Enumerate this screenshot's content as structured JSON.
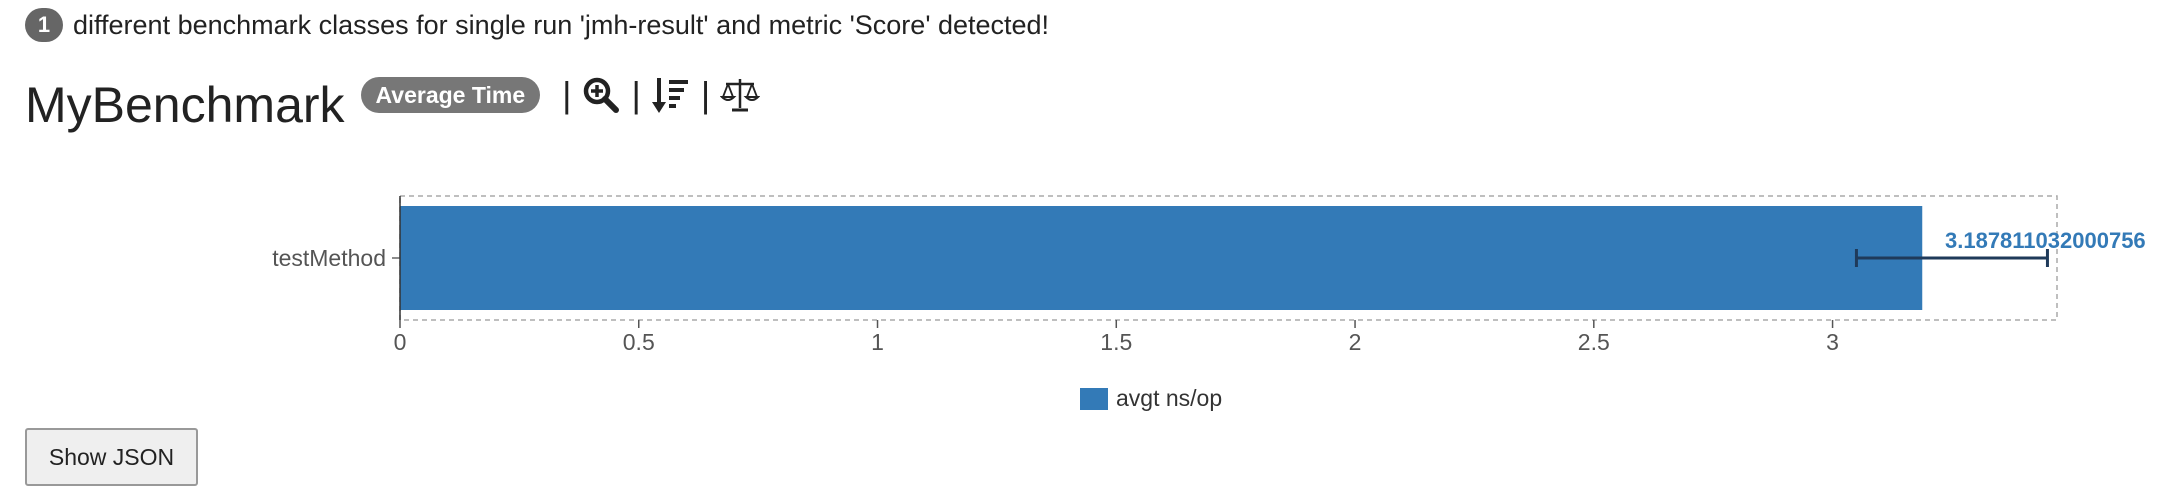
{
  "info": {
    "count": "1",
    "message": "different benchmark classes for single run 'jmh-result' and metric 'Score' detected!"
  },
  "benchmark": {
    "title": "MyBenchmark",
    "mode_badge": "Average Time",
    "separator": "|",
    "icons": [
      "zoom-in-icon",
      "sort-icon",
      "balance-scale-icon"
    ]
  },
  "chart_data": {
    "type": "bar",
    "orientation": "horizontal",
    "categories": [
      "testMethod"
    ],
    "series": [
      {
        "name": "avgt ns/op",
        "values": [
          3.187811032000756
        ],
        "error_low": [
          3.05
        ],
        "error_high": [
          3.45
        ],
        "color": "#337ab7"
      }
    ],
    "data_labels": [
      "3.187811032000756"
    ],
    "xlim": [
      0,
      3.47
    ],
    "x_ticks": [
      0,
      0.5,
      1,
      1.5,
      2,
      2.5,
      3
    ],
    "x_tick_labels": [
      "0",
      "0.5",
      "1",
      "1.5",
      "2",
      "2.5",
      "3"
    ],
    "legend_position": "bottom-center",
    "grid": false
  },
  "legend": {
    "label": "avgt ns/op"
  },
  "button": {
    "label": "Show JSON"
  }
}
